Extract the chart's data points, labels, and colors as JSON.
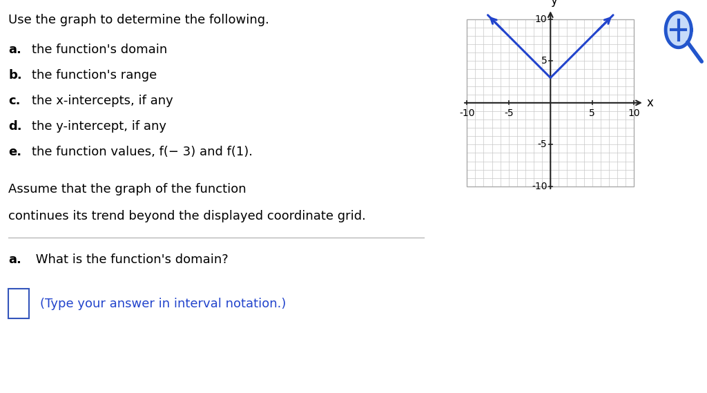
{
  "background_color": "#ffffff",
  "graph_bg_color": "#ffffff",
  "grid_color": "#c8c8c8",
  "axis_color": "#222222",
  "curve_color": "#2244cc",
  "curve_linewidth": 2.2,
  "vertex_x": 0,
  "vertex_y": 3,
  "x_ticks": [
    -10,
    -5,
    5,
    10
  ],
  "y_ticks": [
    -10,
    -5,
    5,
    10
  ],
  "x_label": "x",
  "y_label": "y",
  "text_intro": "Use the graph to determine the following.",
  "items": [
    [
      "a",
      "the function's domain"
    ],
    [
      "b",
      "the function's range"
    ],
    [
      "c",
      "the x-intercepts, if any"
    ],
    [
      "d",
      "the y-intercept, if any"
    ],
    [
      "e",
      "the function values, f(− 3) and f(1)."
    ]
  ],
  "assume_line1": "Assume that the graph of the function",
  "assume_line2": "continues its trend beyond the displayed coordinate grid.",
  "question": "What is the function's domain?",
  "question_label": "a.",
  "answer_hint": "(Type your answer in interval notation.)",
  "fs_main": 13,
  "fs_tick": 10,
  "fs_axis_label": 12
}
